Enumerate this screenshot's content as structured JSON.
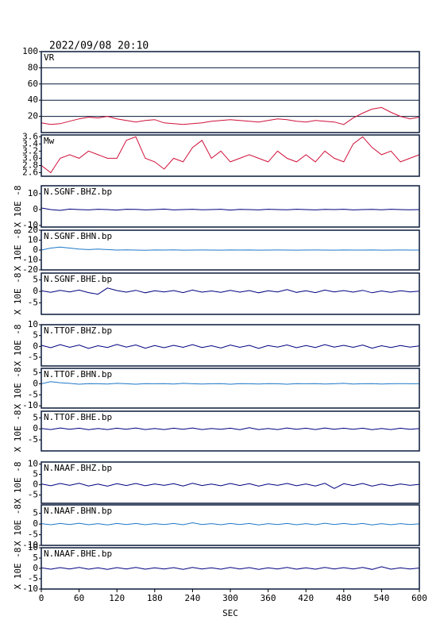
{
  "chart_data": [
    {
      "type": "line",
      "title": "2022/09/08 20:10",
      "panel_label": "VR",
      "color": "#d0103a",
      "grid": true,
      "x": [
        0,
        15,
        30,
        45,
        60,
        75,
        90,
        105,
        120,
        135,
        150,
        165,
        180,
        195,
        210,
        225,
        240,
        255,
        270,
        285,
        300,
        315,
        330,
        345,
        360,
        375,
        390,
        405,
        420,
        435,
        450,
        465,
        480,
        495,
        510,
        525,
        540,
        555,
        570,
        585,
        600
      ],
      "values": [
        12,
        10,
        11,
        14,
        17,
        19,
        18,
        20,
        17,
        15,
        13,
        15,
        16,
        12,
        11,
        10,
        11,
        12,
        14,
        15,
        16,
        15,
        14,
        13,
        15,
        17,
        16,
        14,
        13,
        15,
        14,
        13,
        10,
        18,
        24,
        29,
        31,
        25,
        20,
        17,
        19
      ],
      "xlim": [
        0,
        600
      ],
      "ylim": [
        0,
        100
      ],
      "yticks": [
        20,
        40,
        60,
        80,
        100
      ]
    },
    {
      "type": "line",
      "panel_label": "Mw",
      "color": "#d0103a",
      "x": [
        0,
        15,
        30,
        45,
        60,
        75,
        90,
        105,
        120,
        135,
        150,
        165,
        180,
        195,
        210,
        225,
        240,
        255,
        270,
        285,
        300,
        315,
        330,
        345,
        360,
        375,
        390,
        405,
        420,
        435,
        450,
        465,
        480,
        495,
        510,
        525,
        540,
        555,
        570,
        585,
        600
      ],
      "values": [
        2.8,
        2.6,
        3.0,
        3.1,
        3.0,
        3.2,
        3.1,
        3.0,
        3.0,
        3.5,
        3.6,
        3.0,
        2.9,
        2.7,
        3.0,
        2.9,
        3.3,
        3.5,
        3.0,
        3.2,
        2.9,
        3.0,
        3.1,
        3.0,
        2.9,
        3.2,
        3.0,
        2.9,
        3.1,
        2.9,
        3.2,
        3.0,
        2.9,
        3.4,
        3.6,
        3.3,
        3.1,
        3.2,
        2.9,
        3.0,
        3.1
      ],
      "xlim": [
        0,
        600
      ],
      "ylim": [
        2.5,
        3.65
      ],
      "yticks": [
        2.6,
        2.8,
        {
          "value": 3,
          "label": "3.0"
        },
        3.2,
        3.4,
        3.6
      ]
    },
    {
      "type": "line",
      "panel_label": "N.SGNF.BHZ.bp",
      "ylabel": "X 10E -8",
      "color": "#000080",
      "x": [
        0,
        15,
        30,
        45,
        60,
        75,
        90,
        105,
        120,
        135,
        150,
        165,
        180,
        195,
        210,
        225,
        240,
        255,
        270,
        285,
        300,
        315,
        330,
        345,
        360,
        375,
        390,
        405,
        420,
        435,
        450,
        465,
        480,
        495,
        510,
        525,
        540,
        555,
        570,
        585,
        600
      ],
      "values": [
        1,
        0,
        -0.5,
        0.3,
        0,
        -0.2,
        0.2,
        0,
        -0.3,
        0.2,
        0.1,
        -0.2,
        0,
        0.3,
        -0.2,
        0,
        0.2,
        -0.1,
        0,
        0.2,
        -0.3,
        0.1,
        0,
        -0.2,
        0.2,
        0,
        -0.1,
        0.2,
        0,
        -0.2,
        0.1,
        0,
        0.2,
        -0.2,
        0,
        0.1,
        -0.1,
        0.2,
        0,
        -0.1,
        0
      ],
      "xlim": [
        0,
        600
      ],
      "ylim": [
        -11,
        15
      ],
      "yticks": [
        -10,
        0,
        10
      ]
    },
    {
      "type": "line",
      "panel_label": "N.SGNF.BHN.bp",
      "ylabel": "X 10E -8",
      "color": "#1e78c8",
      "x": [
        0,
        15,
        30,
        45,
        60,
        75,
        90,
        105,
        120,
        135,
        150,
        165,
        180,
        195,
        210,
        225,
        240,
        255,
        270,
        285,
        300,
        315,
        330,
        345,
        360,
        375,
        390,
        405,
        420,
        435,
        450,
        465,
        480,
        495,
        510,
        525,
        540,
        555,
        570,
        585,
        600
      ],
      "values": [
        0,
        2,
        3,
        2,
        1,
        0.5,
        1,
        0.5,
        0,
        0.2,
        0,
        -0.2,
        0.1,
        0,
        0.2,
        -0.1,
        0,
        0.1,
        0,
        -0.1,
        0.1,
        0,
        0.1,
        -0.1,
        0,
        0.1,
        0,
        -0.1,
        0,
        0.1,
        0,
        -0.1,
        0.1,
        0,
        0,
        0.1,
        -0.1,
        0,
        0.1,
        0,
        0
      ],
      "xlim": [
        0,
        600
      ],
      "ylim": [
        -20,
        20
      ],
      "yticks": [
        -20,
        -10,
        0,
        10,
        20
      ]
    },
    {
      "type": "line",
      "panel_label": "N.SGNF.BHE.bp",
      "ylabel": "X 10E -8",
      "color": "#000080",
      "x": [
        0,
        15,
        30,
        45,
        60,
        75,
        90,
        105,
        120,
        135,
        150,
        165,
        180,
        195,
        210,
        225,
        240,
        255,
        270,
        285,
        300,
        315,
        330,
        345,
        360,
        375,
        390,
        405,
        420,
        435,
        450,
        465,
        480,
        495,
        510,
        525,
        540,
        555,
        570,
        585,
        600
      ],
      "values": [
        0.3,
        -0.4,
        0.5,
        -0.2,
        0.6,
        -0.5,
        -1.2,
        1.5,
        0.4,
        -0.3,
        0.5,
        -0.6,
        0.3,
        -0.2,
        0.4,
        -0.5,
        0.6,
        -0.3,
        0.2,
        -0.4,
        0.5,
        -0.3,
        0.4,
        -0.6,
        0.3,
        -0.2,
        0.8,
        -0.4,
        0.3,
        -0.5,
        0.6,
        -0.2,
        0.4,
        -0.3,
        0.5,
        -0.6,
        0.2,
        -0.4,
        0.3,
        -0.2,
        0.1
      ],
      "xlim": [
        0,
        600
      ],
      "ylim": [
        -10,
        8
      ],
      "yticks": [
        -5,
        0,
        5
      ]
    },
    {
      "type": "line",
      "panel_label": "N.TTOF.BHZ.bp",
      "ylabel": "X 10E -8",
      "color": "#000080",
      "x": [
        0,
        15,
        30,
        45,
        60,
        75,
        90,
        105,
        120,
        135,
        150,
        165,
        180,
        195,
        210,
        225,
        240,
        255,
        270,
        285,
        300,
        315,
        330,
        345,
        360,
        375,
        390,
        405,
        420,
        435,
        450,
        465,
        480,
        495,
        510,
        525,
        540,
        555,
        570,
        585,
        600
      ],
      "values": [
        0.5,
        -0.6,
        0.8,
        -0.4,
        0.6,
        -0.9,
        0.3,
        -0.5,
        0.9,
        -0.3,
        0.7,
        -0.8,
        0.4,
        -0.6,
        0.5,
        -0.4,
        0.8,
        -0.5,
        0.3,
        -0.7,
        0.6,
        -0.4,
        0.5,
        -0.9,
        0.4,
        -0.3,
        0.7,
        -0.6,
        0.4,
        -0.5,
        0.8,
        -0.3,
        0.5,
        -0.4,
        0.6,
        -0.8,
        0.3,
        -0.5,
        0.4,
        -0.3,
        0.2
      ],
      "xlim": [
        0,
        600
      ],
      "ylim": [
        -9,
        10
      ],
      "yticks": [
        -5,
        0,
        5,
        10
      ]
    },
    {
      "type": "line",
      "panel_label": "N.TTOF.BHN.bp",
      "ylabel": "X 10E -8",
      "color": "#1e78c8",
      "x": [
        0,
        15,
        30,
        45,
        60,
        75,
        90,
        105,
        120,
        135,
        150,
        165,
        180,
        195,
        210,
        225,
        240,
        255,
        270,
        285,
        300,
        315,
        330,
        345,
        360,
        375,
        390,
        405,
        420,
        435,
        450,
        465,
        480,
        495,
        510,
        525,
        540,
        555,
        570,
        585,
        600
      ],
      "values": [
        0,
        1,
        0.5,
        0.2,
        -0.2,
        0.1,
        0,
        -0.1,
        0.2,
        0,
        -0.2,
        0.1,
        0,
        0.1,
        -0.1,
        0.2,
        0,
        -0.1,
        0,
        0.1,
        -0.2,
        0.1,
        0,
        -0.1,
        0.1,
        0,
        -0.2,
        0.1,
        0,
        0.1,
        -0.1,
        0,
        0.2,
        -0.1,
        0,
        0.1,
        -0.1,
        0,
        0.1,
        0,
        0
      ],
      "xlim": [
        0,
        600
      ],
      "ylim": [
        -11,
        7
      ],
      "yticks": [
        -10,
        -5,
        0,
        5
      ]
    },
    {
      "type": "line",
      "panel_label": "N.TTOF.BHE.bp",
      "ylabel": "X 10E -8",
      "color": "#000080",
      "x": [
        0,
        15,
        30,
        45,
        60,
        75,
        90,
        105,
        120,
        135,
        150,
        165,
        180,
        195,
        210,
        225,
        240,
        255,
        270,
        285,
        300,
        315,
        330,
        345,
        360,
        375,
        390,
        405,
        420,
        435,
        450,
        465,
        480,
        495,
        510,
        525,
        540,
        555,
        570,
        585,
        600
      ],
      "values": [
        0.2,
        -0.3,
        0.4,
        -0.2,
        0.3,
        -0.4,
        0.2,
        -0.3,
        0.3,
        -0.2,
        0.4,
        -0.3,
        0.2,
        -0.3,
        0.3,
        -0.2,
        0.4,
        -0.3,
        0.2,
        -0.2,
        0.3,
        -0.4,
        0.5,
        -0.3,
        0.2,
        -0.3,
        0.4,
        -0.2,
        0.3,
        -0.3,
        0.4,
        -0.2,
        0.3,
        -0.2,
        0.3,
        -0.4,
        0.2,
        -0.3,
        0.3,
        -0.2,
        0.1
      ],
      "xlim": [
        0,
        600
      ],
      "ylim": [
        -10,
        8
      ],
      "yticks": [
        -5,
        0,
        5
      ]
    },
    {
      "type": "line",
      "panel_label": "N.NAAF.BHZ.bp",
      "ylabel": "X 10E -8",
      "color": "#000080",
      "x": [
        0,
        15,
        30,
        45,
        60,
        75,
        90,
        105,
        120,
        135,
        150,
        165,
        180,
        195,
        210,
        225,
        240,
        255,
        270,
        285,
        300,
        315,
        330,
        345,
        360,
        375,
        390,
        405,
        420,
        435,
        450,
        465,
        480,
        495,
        510,
        525,
        540,
        555,
        570,
        585,
        600
      ],
      "values": [
        0.4,
        -0.5,
        0.6,
        -0.3,
        0.7,
        -0.6,
        0.3,
        -0.7,
        0.5,
        -0.4,
        0.6,
        -0.5,
        0.4,
        -0.3,
        0.5,
        -0.6,
        0.7,
        -0.4,
        0.3,
        -0.5,
        0.6,
        -0.4,
        0.5,
        -0.7,
        0.4,
        -0.3,
        0.6,
        -0.5,
        0.4,
        -0.6,
        0.7,
        -1.8,
        0.5,
        -0.4,
        0.6,
        -0.7,
        0.3,
        -0.5,
        0.4,
        -0.3,
        0.2
      ],
      "xlim": [
        0,
        600
      ],
      "ylim": [
        -9,
        11
      ],
      "yticks": [
        -5,
        0,
        5,
        10
      ]
    },
    {
      "type": "line",
      "panel_label": "N.NAAF.BHN.bp",
      "ylabel": "X 10E -8",
      "color": "#1e78c8",
      "x": [
        0,
        15,
        30,
        45,
        60,
        75,
        90,
        105,
        120,
        135,
        150,
        165,
        180,
        195,
        210,
        225,
        240,
        255,
        270,
        285,
        300,
        315,
        330,
        345,
        360,
        375,
        390,
        405,
        420,
        435,
        450,
        465,
        480,
        495,
        510,
        525,
        540,
        555,
        570,
        585,
        600
      ],
      "values": [
        0.2,
        -0.3,
        0.3,
        -0.2,
        0.4,
        -0.3,
        0.2,
        -0.4,
        0.3,
        -0.2,
        0.3,
        -0.3,
        0.2,
        -0.2,
        0.3,
        -0.3,
        0.6,
        -0.2,
        0.2,
        -0.3,
        0.3,
        -0.2,
        0.3,
        -0.4,
        0.2,
        -0.2,
        0.3,
        -0.3,
        0.2,
        -0.3,
        0.4,
        -0.2,
        0.3,
        -0.2,
        0.3,
        -0.4,
        0.2,
        -0.3,
        0.2,
        -0.2,
        0.1
      ],
      "xlim": [
        0,
        600
      ],
      "ylim": [
        -10,
        9
      ],
      "yticks": [
        -10,
        -5,
        0,
        5
      ]
    },
    {
      "type": "line",
      "panel_label": "N.NAAF.BHE.bp",
      "ylabel": "X 10E -8",
      "xlabel": "SEC",
      "color": "#000080",
      "x": [
        0,
        15,
        30,
        45,
        60,
        75,
        90,
        105,
        120,
        135,
        150,
        165,
        180,
        195,
        210,
        225,
        240,
        255,
        270,
        285,
        300,
        315,
        330,
        345,
        360,
        375,
        390,
        405,
        420,
        435,
        450,
        465,
        480,
        495,
        510,
        525,
        540,
        555,
        570,
        585,
        600
      ],
      "values": [
        0.3,
        -0.4,
        0.4,
        -0.3,
        0.5,
        -0.4,
        0.3,
        -0.5,
        0.4,
        -0.3,
        0.5,
        -0.4,
        0.3,
        -0.3,
        0.4,
        -0.5,
        0.5,
        -0.3,
        0.3,
        -0.4,
        0.5,
        -0.3,
        0.4,
        -0.5,
        0.3,
        -0.3,
        0.5,
        -0.4,
        0.3,
        -0.4,
        0.5,
        -0.3,
        0.4,
        -0.3,
        0.5,
        -0.5,
        0.8,
        -0.4,
        0.3,
        -0.3,
        0.2
      ],
      "xlim": [
        0,
        600
      ],
      "ylim": [
        -10,
        10
      ],
      "yticks": [
        -10,
        -5,
        0,
        5,
        10
      ],
      "xticks": [
        0,
        60,
        120,
        180,
        240,
        300,
        360,
        420,
        480,
        540,
        600
      ]
    }
  ]
}
